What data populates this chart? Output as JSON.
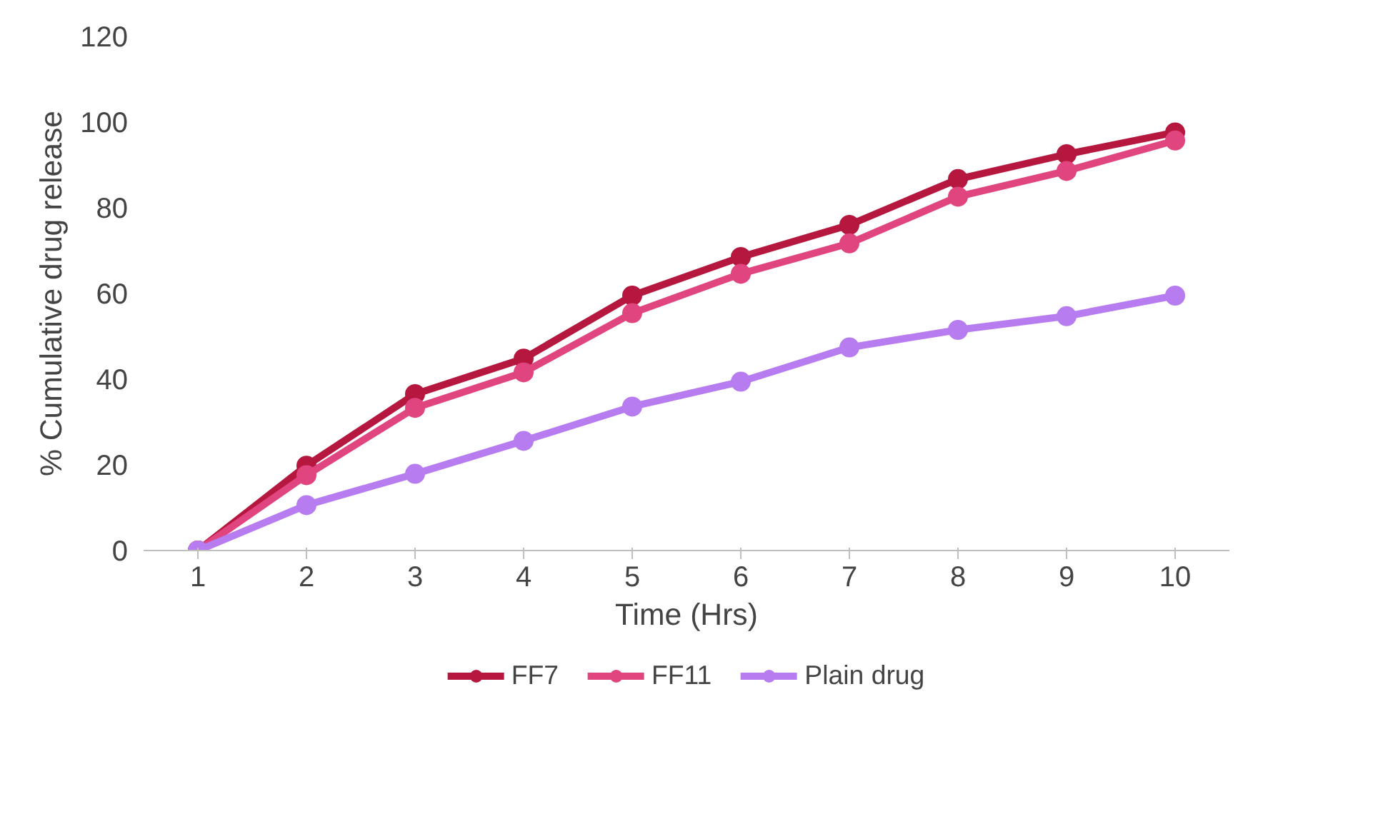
{
  "chart_data": {
    "type": "line",
    "xlabel": "Time (Hrs)",
    "ylabel": "% Cumulative drug release",
    "categories": [
      "1",
      "2",
      "3",
      "4",
      "5",
      "6",
      "7",
      "8",
      "9",
      "10"
    ],
    "series": [
      {
        "name": "FF7",
        "color": "#b5173f",
        "values": [
          0,
          19.8,
          36.5,
          44.8,
          59.5,
          68.5,
          76,
          86.7,
          92.5,
          97.6
        ]
      },
      {
        "name": "FF11",
        "color": "#e0457f",
        "values": [
          0,
          17.6,
          33.3,
          41.6,
          55.4,
          64.6,
          71.7,
          82.6,
          88.6,
          95.7
        ]
      },
      {
        "name": "Plain drug",
        "color": "#b77cf0",
        "values": [
          0,
          10.6,
          17.9,
          25.6,
          33.6,
          39.4,
          47.4,
          51.5,
          54.7,
          59.5
        ]
      }
    ],
    "ylim": [
      0,
      120
    ],
    "yticks": [
      0,
      20,
      40,
      60,
      80,
      100,
      120
    ],
    "grid": false,
    "legend": "bottom",
    "marker": "circle",
    "line_style": "solid"
  }
}
